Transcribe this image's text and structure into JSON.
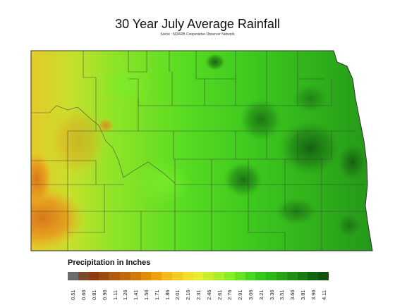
{
  "title": "30 Year July Average Rainfall",
  "subtitle": "Soicie : NDARB Cooperative Observer Network",
  "legend": {
    "title": "Precipitation in Inches",
    "ticks": [
      "0.51",
      "0.66",
      "0.81",
      "0.96",
      "1.11",
      "1.26",
      "1.41",
      "1.56",
      "1.71",
      "1.86",
      "2.01",
      "2.16",
      "2.31",
      "2.46",
      "2.61",
      "2.76",
      "2.91",
      "3.06",
      "3.21",
      "3.36",
      "3.51",
      "3.66",
      "3.81",
      "3.96",
      "4.11"
    ],
    "colors": [
      "#6b6b6b",
      "#7a4a2a",
      "#8b3a12",
      "#9c4a10",
      "#b05a0e",
      "#c06a0a",
      "#d07a08",
      "#e08c06",
      "#f0a010",
      "#f5b81a",
      "#f2cc22",
      "#f2df2a",
      "#e6ee2e",
      "#c8ef2c",
      "#a8ef2a",
      "#88ec26",
      "#66e422",
      "#48d81e",
      "#34c81a",
      "#2bb818",
      "#24a416",
      "#1e9014",
      "#187a12",
      "#12640e",
      "#0e520c"
    ]
  },
  "map": {
    "region_colors": {
      "southwest": "#e89a1a",
      "west": "#d8c630",
      "west_central": "#b8e02e",
      "central": "#6ee026",
      "east": "#3cc41e",
      "east_dark": "#1e7a14"
    }
  }
}
